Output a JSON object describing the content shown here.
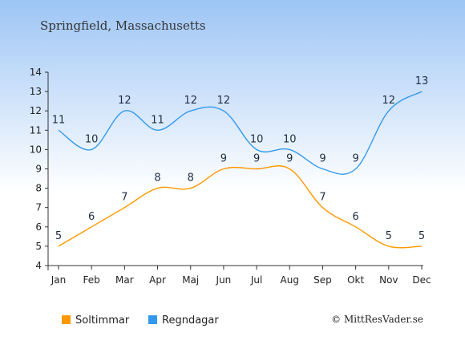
{
  "chart_data": {
    "type": "line",
    "title": "Springfield, Massachusetts",
    "categories": [
      "Jan",
      "Feb",
      "Mar",
      "Apr",
      "Maj",
      "Jun",
      "Jul",
      "Aug",
      "Sep",
      "Okt",
      "Nov",
      "Dec"
    ],
    "series": [
      {
        "name": "Soltimmar",
        "values": [
          5,
          6,
          7,
          8,
          8,
          9,
          9,
          9,
          7,
          6,
          5,
          5
        ],
        "color": "#ff9900"
      },
      {
        "name": "Regndagar",
        "values": [
          11,
          10,
          12,
          11,
          12,
          12,
          10,
          10,
          9,
          9,
          12,
          13
        ],
        "color": "#3399ee"
      }
    ],
    "ylim": [
      4,
      14
    ],
    "yticks": [
      "4",
      "5",
      "6",
      "7",
      "8",
      "9",
      "10",
      "11",
      "12",
      "13",
      "14"
    ],
    "grid": false,
    "legend": "bottom-left",
    "background_top": "#9dc5f5",
    "background_bottom": "#ffffff"
  },
  "footer": {
    "copyright": "© MittResVader.se"
  }
}
